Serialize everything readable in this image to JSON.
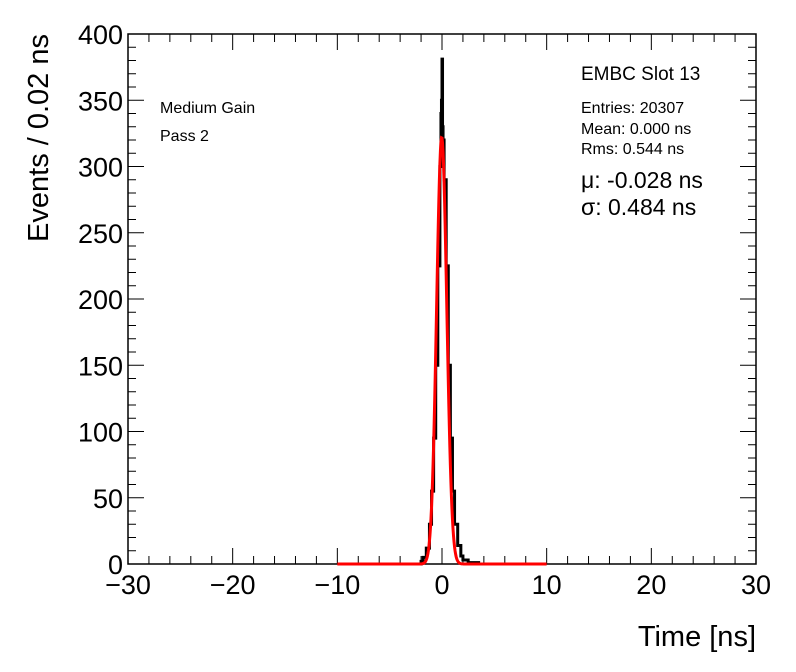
{
  "chart_data": {
    "type": "histogram",
    "title": "",
    "xlabel": "Time [ns]",
    "ylabel": "Events / 0.02 ns",
    "xlim": [
      -30,
      30
    ],
    "ylim": [
      0,
      400
    ],
    "x_ticks": [
      -30,
      -20,
      -10,
      0,
      10,
      20,
      30
    ],
    "x_tick_labels": [
      "−30",
      "−20",
      "−10",
      "0",
      "10",
      "20",
      "30"
    ],
    "y_ticks": [
      0,
      50,
      100,
      150,
      200,
      250,
      300,
      350,
      400
    ],
    "y_tick_labels": [
      "0",
      "50",
      "100",
      "150",
      "200",
      "250",
      "300",
      "350",
      "400"
    ],
    "grid": false,
    "histogram": {
      "name": "data",
      "color": "#000000",
      "bin_width": 0.02,
      "peak_x": 0.0,
      "peak_y": 381,
      "points": [
        [
          -3.0,
          0
        ],
        [
          -2.0,
          2
        ],
        [
          -1.8,
          5
        ],
        [
          -1.5,
          12
        ],
        [
          -1.2,
          30
        ],
        [
          -1.0,
          55
        ],
        [
          -0.8,
          95
        ],
        [
          -0.6,
          150
        ],
        [
          -0.4,
          225
        ],
        [
          -0.2,
          300
        ],
        [
          -0.1,
          340
        ],
        [
          -0.05,
          350
        ],
        [
          0.0,
          381
        ],
        [
          0.05,
          330
        ],
        [
          0.1,
          320
        ],
        [
          0.2,
          290
        ],
        [
          0.4,
          225
        ],
        [
          0.6,
          150
        ],
        [
          0.8,
          95
        ],
        [
          1.0,
          55
        ],
        [
          1.2,
          30
        ],
        [
          1.5,
          14
        ],
        [
          1.8,
          6
        ],
        [
          2.0,
          3
        ],
        [
          2.5,
          1
        ],
        [
          3.0,
          1
        ],
        [
          3.5,
          0
        ]
      ]
    },
    "fit": {
      "name": "gaussian fit",
      "color": "#ff0000",
      "mu": -0.028,
      "sigma": 0.484,
      "amplitude": 322,
      "range": [
        -10,
        10
      ]
    },
    "annotations": {
      "label_line1": "Medium Gain",
      "label_line2": "Pass 2",
      "stats_title": "EMBC Slot 13",
      "entries": "Entries: 20307",
      "mean": "Mean: 0.000 ns",
      "rms": "Rms: 0.544 ns",
      "mu_text": "μ: -0.028 ns",
      "sigma_text": "σ: 0.484 ns"
    }
  }
}
